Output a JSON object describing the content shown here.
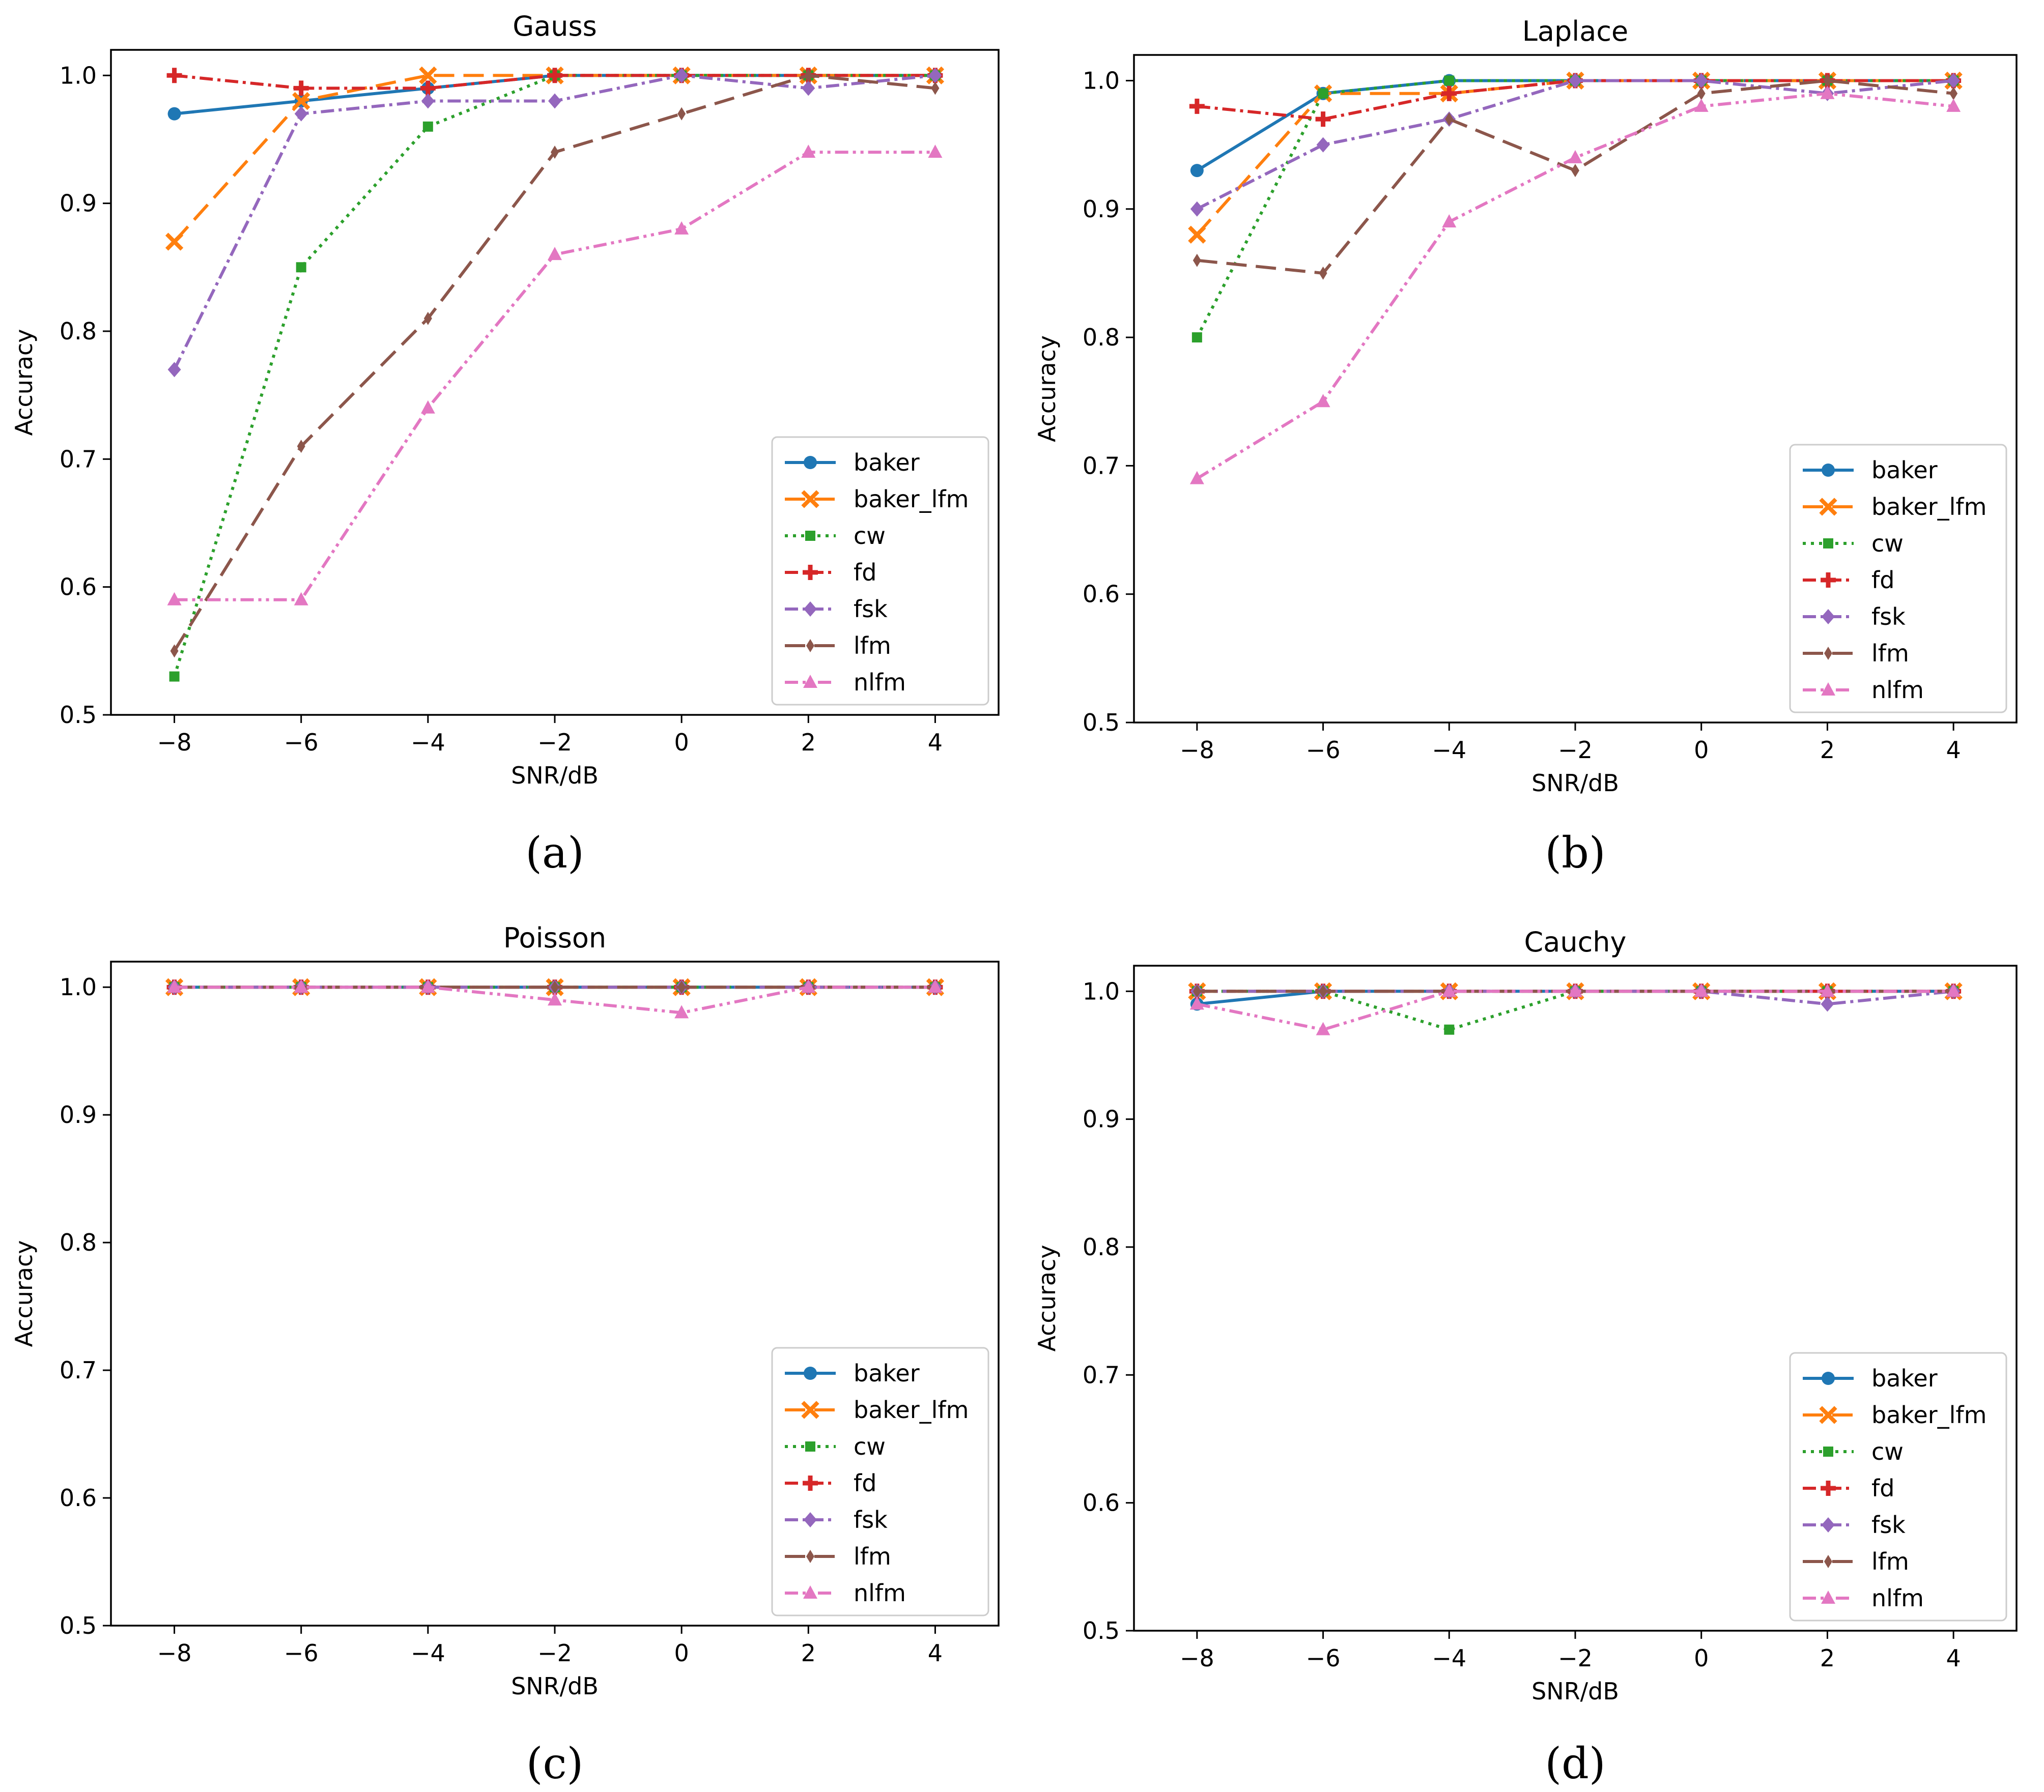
{
  "series_style": [
    {
      "name": "baker",
      "color": "#1f77b4",
      "dash": "",
      "marker": "circle"
    },
    {
      "name": "baker_lfm",
      "color": "#ff7f0e",
      "dash": "40 18",
      "marker": "x"
    },
    {
      "name": "cw",
      "color": "#2ca02c",
      "dash": "6 10",
      "marker": "square"
    },
    {
      "name": "fd",
      "color": "#d62728",
      "dash": "26 9 6 9",
      "marker": "plus"
    },
    {
      "name": "fsk",
      "color": "#9467bd",
      "dash": "26 9 6 9",
      "marker": "diamond"
    },
    {
      "name": "lfm",
      "color": "#8c564b",
      "dash": "40 18",
      "marker": "thin-diamond"
    },
    {
      "name": "nlfm",
      "color": "#e377c2",
      "dash": "26 9 6 9 6 9",
      "marker": "triangle"
    }
  ],
  "chart_data": [
    {
      "type": "line",
      "title": "Gauss",
      "caption": "(a)",
      "xlabel": "SNR/dB",
      "ylabel": "Accuracy",
      "x": [
        -8,
        -6,
        -4,
        -2,
        0,
        2,
        4
      ],
      "x_ticks": [
        "−8",
        "−6",
        "−4",
        "−2",
        "0",
        "2",
        "4"
      ],
      "xlim": [
        -9,
        5
      ],
      "ylim": [
        0.5,
        1.02
      ],
      "y_ticks": [
        "0.5",
        "0.6",
        "0.7",
        "0.8",
        "0.9",
        "1.0"
      ],
      "legend_position": "lower-right",
      "series": [
        {
          "name": "baker",
          "values": [
            0.97,
            0.98,
            0.99,
            1.0,
            1.0,
            1.0,
            1.0
          ]
        },
        {
          "name": "baker_lfm",
          "values": [
            0.87,
            0.98,
            1.0,
            1.0,
            1.0,
            1.0,
            1.0
          ]
        },
        {
          "name": "cw",
          "values": [
            0.53,
            0.85,
            0.96,
            1.0,
            1.0,
            1.0,
            1.0
          ]
        },
        {
          "name": "fd",
          "values": [
            1.0,
            0.99,
            0.99,
            1.0,
            1.0,
            1.0,
            1.0
          ]
        },
        {
          "name": "fsk",
          "values": [
            0.77,
            0.97,
            0.98,
            0.98,
            1.0,
            0.99,
            1.0
          ]
        },
        {
          "name": "lfm",
          "values": [
            0.55,
            0.71,
            0.81,
            0.94,
            0.97,
            1.0,
            0.99
          ]
        },
        {
          "name": "nlfm",
          "values": [
            0.59,
            0.59,
            0.74,
            0.86,
            0.88,
            0.94,
            0.94
          ]
        }
      ]
    },
    {
      "type": "line",
      "title": "Laplace",
      "caption": "(b)",
      "xlabel": "SNR/dB",
      "ylabel": "Accuracy",
      "x": [
        -8,
        -6,
        -4,
        -2,
        0,
        2,
        4
      ],
      "x_ticks": [
        "−8",
        "−6",
        "−4",
        "−2",
        "0",
        "2",
        "4"
      ],
      "xlim": [
        -9,
        5
      ],
      "ylim": [
        0.5,
        1.02
      ],
      "y_ticks": [
        "0.5",
        "0.6",
        "0.7",
        "0.8",
        "0.9",
        "1.0"
      ],
      "legend_position": "lower-right",
      "series": [
        {
          "name": "baker",
          "values": [
            0.93,
            0.99,
            1.0,
            1.0,
            1.0,
            1.0,
            1.0
          ]
        },
        {
          "name": "baker_lfm",
          "values": [
            0.88,
            0.99,
            0.99,
            1.0,
            1.0,
            1.0,
            1.0
          ]
        },
        {
          "name": "cw",
          "values": [
            0.8,
            0.99,
            1.0,
            1.0,
            1.0,
            1.0,
            1.0
          ]
        },
        {
          "name": "fd",
          "values": [
            0.98,
            0.97,
            0.99,
            1.0,
            1.0,
            1.0,
            1.0
          ]
        },
        {
          "name": "fsk",
          "values": [
            0.9,
            0.95,
            0.97,
            1.0,
            1.0,
            0.99,
            1.0
          ]
        },
        {
          "name": "lfm",
          "values": [
            0.86,
            0.85,
            0.97,
            0.93,
            0.99,
            1.0,
            0.99
          ]
        },
        {
          "name": "nlfm",
          "values": [
            0.69,
            0.75,
            0.89,
            0.94,
            0.98,
            0.99,
            0.98
          ]
        }
      ]
    },
    {
      "type": "line",
      "title": "Poisson",
      "caption": "(c)",
      "xlabel": "SNR/dB",
      "ylabel": "Accuracy",
      "x": [
        -8,
        -6,
        -4,
        -2,
        0,
        2,
        4
      ],
      "x_ticks": [
        "−8",
        "−6",
        "−4",
        "−2",
        "0",
        "2",
        "4"
      ],
      "xlim": [
        -9,
        5
      ],
      "ylim": [
        0.5,
        1.02
      ],
      "y_ticks": [
        "0.5",
        "0.6",
        "0.7",
        "0.8",
        "0.9",
        "1.0"
      ],
      "legend_position": "lower-right",
      "series": [
        {
          "name": "baker",
          "values": [
            1.0,
            1.0,
            1.0,
            1.0,
            1.0,
            1.0,
            1.0
          ]
        },
        {
          "name": "baker_lfm",
          "values": [
            1.0,
            1.0,
            1.0,
            1.0,
            1.0,
            1.0,
            1.0
          ]
        },
        {
          "name": "cw",
          "values": [
            1.0,
            1.0,
            1.0,
            1.0,
            1.0,
            1.0,
            1.0
          ]
        },
        {
          "name": "fd",
          "values": [
            1.0,
            1.0,
            1.0,
            1.0,
            1.0,
            1.0,
            1.0
          ]
        },
        {
          "name": "fsk",
          "values": [
            1.0,
            1.0,
            1.0,
            1.0,
            1.0,
            1.0,
            1.0
          ]
        },
        {
          "name": "lfm",
          "values": [
            1.0,
            1.0,
            1.0,
            1.0,
            1.0,
            1.0,
            1.0
          ]
        },
        {
          "name": "nlfm",
          "values": [
            1.0,
            1.0,
            1.0,
            0.99,
            0.98,
            1.0,
            1.0
          ]
        }
      ]
    },
    {
      "type": "line",
      "title": "Cauchy",
      "caption": "(d)",
      "xlabel": "SNR/dB",
      "ylabel": "Accuracy",
      "x": [
        -8,
        -6,
        -4,
        -2,
        0,
        2,
        4
      ],
      "x_ticks": [
        "−8",
        "−6",
        "−4",
        "−2",
        "0",
        "2",
        "4"
      ],
      "xlim": [
        -9,
        5
      ],
      "ylim": [
        0.5,
        1.02
      ],
      "y_ticks": [
        "0.5",
        "0.6",
        "0.7",
        "0.8",
        "0.9",
        "1.0"
      ],
      "legend_position": "lower-right",
      "series": [
        {
          "name": "baker",
          "values": [
            0.99,
            1.0,
            1.0,
            1.0,
            1.0,
            1.0,
            1.0
          ]
        },
        {
          "name": "baker_lfm",
          "values": [
            1.0,
            1.0,
            1.0,
            1.0,
            1.0,
            1.0,
            1.0
          ]
        },
        {
          "name": "cw",
          "values": [
            1.0,
            1.0,
            0.97,
            1.0,
            1.0,
            1.0,
            1.0
          ]
        },
        {
          "name": "fd",
          "values": [
            1.0,
            1.0,
            1.0,
            1.0,
            1.0,
            1.0,
            1.0
          ]
        },
        {
          "name": "fsk",
          "values": [
            1.0,
            1.0,
            1.0,
            1.0,
            1.0,
            0.99,
            1.0
          ]
        },
        {
          "name": "lfm",
          "values": [
            1.0,
            1.0,
            1.0,
            1.0,
            1.0,
            1.0,
            1.0
          ]
        },
        {
          "name": "nlfm",
          "values": [
            0.99,
            0.97,
            1.0,
            1.0,
            1.0,
            1.0,
            1.0
          ]
        }
      ]
    }
  ]
}
